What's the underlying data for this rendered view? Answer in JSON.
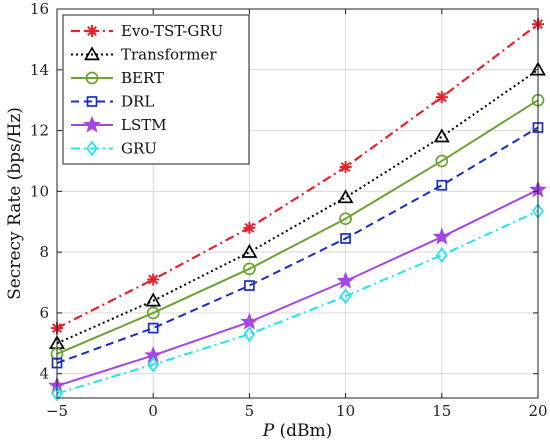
{
  "chart_data": {
    "type": "line",
    "xlabel_var": "P",
    "xlabel_unit": " (dBm)",
    "ylabel": "Secrecy Rate (bps/Hz)",
    "x": [
      -5,
      0,
      5,
      10,
      15,
      20
    ],
    "xlim": [
      -5,
      20
    ],
    "ylim": [
      3.2,
      16
    ],
    "xticks": [
      "−5",
      "0",
      "5",
      "10",
      "15",
      "20"
    ],
    "xtick_values": [
      -5,
      0,
      5,
      10,
      15,
      20
    ],
    "yticks": [
      "4",
      "6",
      "8",
      "10",
      "12",
      "14",
      "16"
    ],
    "ytick_values": [
      4,
      6,
      8,
      10,
      12,
      14,
      16
    ],
    "grid": true,
    "legend_position": "top-left",
    "series": [
      {
        "name": "Evo-TST-GRU",
        "values": [
          5.5,
          7.1,
          8.8,
          10.8,
          13.1,
          15.5
        ],
        "color": "#e8202a",
        "dash": "9,4,2,4",
        "marker": "asterisk",
        "width": 2.2
      },
      {
        "name": "Transformer",
        "values": [
          5.0,
          6.4,
          8.0,
          9.8,
          11.8,
          14.0
        ],
        "color": "#000000",
        "dash": "2,3",
        "marker": "triangle",
        "width": 2
      },
      {
        "name": "BERT",
        "values": [
          4.65,
          6.0,
          7.45,
          9.1,
          11.0,
          13.0
        ],
        "color": "#6aa332",
        "dash": "",
        "marker": "circle",
        "width": 2
      },
      {
        "name": "DRL",
        "values": [
          4.35,
          5.5,
          6.9,
          8.45,
          10.2,
          12.1
        ],
        "color": "#1a2dc8",
        "dash": "8,5",
        "marker": "square",
        "width": 2
      },
      {
        "name": "LSTM",
        "values": [
          3.6,
          4.6,
          5.7,
          7.05,
          8.5,
          10.05
        ],
        "color": "#a545e8",
        "dash": "",
        "marker": "star",
        "width": 2
      },
      {
        "name": "GRU",
        "values": [
          3.35,
          4.3,
          5.3,
          6.55,
          7.9,
          9.35
        ],
        "color": "#22e3f0",
        "dash": "9,4,2,4",
        "marker": "diamond",
        "width": 2
      }
    ]
  }
}
